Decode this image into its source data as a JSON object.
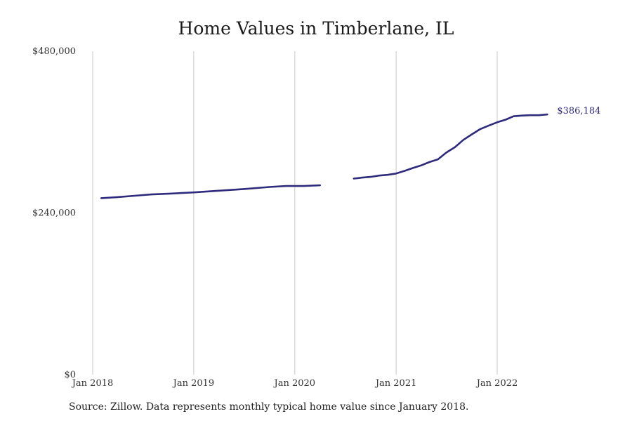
{
  "chart_data": {
    "type": "line",
    "title": "Home Values in Timberlane, IL",
    "xlabel": "",
    "ylabel": "",
    "xlim": [
      "2018-01-01",
      "2022-12-31"
    ],
    "ylim": [
      0,
      480000
    ],
    "x_ticks": [
      {
        "date": "2018-01-01",
        "label": "Jan 2018"
      },
      {
        "date": "2019-01-01",
        "label": "Jan 2019"
      },
      {
        "date": "2020-01-01",
        "label": "Jan 2020"
      },
      {
        "date": "2021-01-01",
        "label": "Jan 2021"
      },
      {
        "date": "2022-01-01",
        "label": "Jan 2022"
      }
    ],
    "y_ticks": [
      {
        "value": 0,
        "label": "$0"
      },
      {
        "value": 240000,
        "label": "$240,000"
      },
      {
        "value": 480000,
        "label": "$480,000"
      }
    ],
    "grid": "vertical",
    "line_color": "#2e2a7c",
    "series": [
      {
        "segments": [
          [
            [
              "2018-02-01",
              262000
            ],
            [
              "2018-04-01",
              263500
            ],
            [
              "2018-06-01",
              265500
            ],
            [
              "2018-08-01",
              267500
            ],
            [
              "2018-10-01",
              268500
            ],
            [
              "2019-01-01",
              270500
            ],
            [
              "2019-04-01",
              273000
            ],
            [
              "2019-07-01",
              275500
            ],
            [
              "2019-10-01",
              278500
            ],
            [
              "2019-12-01",
              280000
            ],
            [
              "2020-02-01",
              280000
            ],
            [
              "2020-04-01",
              281000
            ]
          ],
          [
            [
              "2020-08-01",
              291000
            ],
            [
              "2020-09-01",
              292500
            ],
            [
              "2020-10-01",
              293500
            ],
            [
              "2020-11-01",
              295500
            ],
            [
              "2020-12-01",
              296500
            ],
            [
              "2021-01-01",
              298500
            ],
            [
              "2021-02-01",
              302500
            ],
            [
              "2021-03-01",
              306500
            ],
            [
              "2021-04-01",
              310500
            ],
            [
              "2021-05-01",
              315500
            ],
            [
              "2021-06-01",
              319500
            ],
            [
              "2021-07-01",
              329500
            ],
            [
              "2021-08-01",
              337500
            ],
            [
              "2021-09-01",
              348500
            ],
            [
              "2021-10-01",
              356500
            ],
            [
              "2021-11-01",
              364500
            ],
            [
              "2021-12-01",
              369500
            ],
            [
              "2022-01-01",
              374500
            ],
            [
              "2022-02-01",
              378500
            ],
            [
              "2022-03-01",
              383500
            ],
            [
              "2022-04-01",
              384500
            ],
            [
              "2022-05-01",
              385000
            ],
            [
              "2022-06-01",
              385000
            ],
            [
              "2022-07-01",
              386184
            ]
          ]
        ]
      }
    ],
    "end_label": "$386,184"
  },
  "footer": {
    "source": "Source: Zillow. Data represents monthly typical home value since January 2018."
  }
}
